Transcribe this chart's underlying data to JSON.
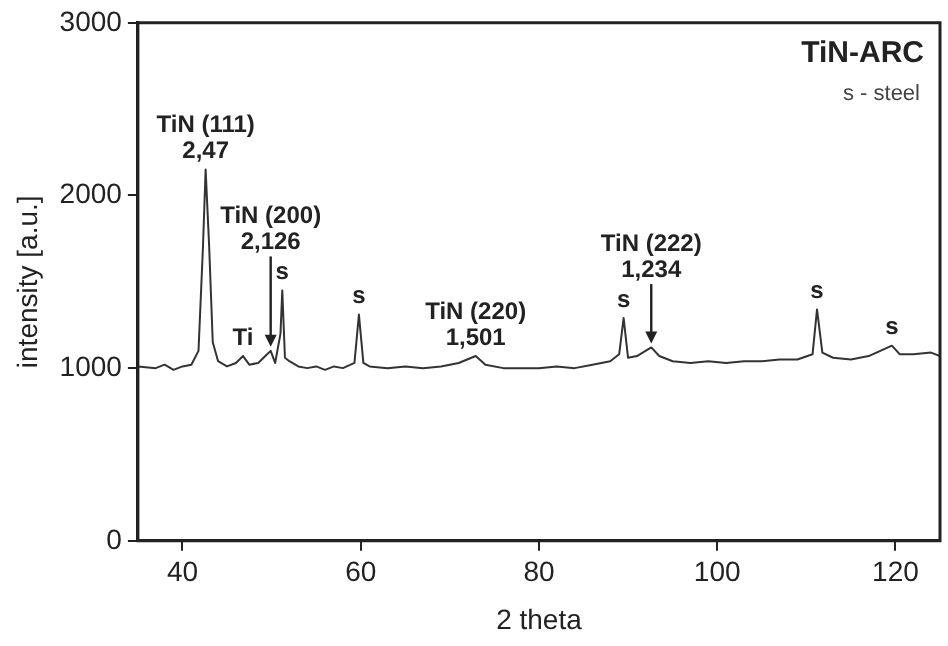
{
  "chart_data": {
    "type": "line",
    "title": "TiN-ARC",
    "xlabel": "2 theta",
    "ylabel": "intensity [a.u.]",
    "xlim": [
      35,
      125
    ],
    "xticks": [
      40,
      60,
      80,
      100,
      120
    ],
    "ylim": [
      0,
      3000
    ],
    "yticks": [
      0,
      1000,
      2000,
      3000
    ],
    "grid": false,
    "legend": false,
    "marker": "none",
    "line_style": "solid",
    "series": [
      {
        "color": "#333333",
        "x": [
          35,
          37,
          38,
          39,
          40,
          41,
          41.8,
          42.3,
          42.6,
          43,
          43.4,
          44,
          45,
          46,
          46.8,
          47.5,
          48.5,
          49.5,
          49.9,
          50.4,
          51,
          51.2,
          51.5,
          52,
          53,
          54,
          55,
          56,
          57,
          58,
          59.3,
          59.8,
          60.3,
          61,
          63,
          65,
          67,
          69,
          71,
          72.9,
          74,
          76,
          78,
          80,
          82,
          84,
          86,
          88,
          89,
          89.5,
          90,
          91,
          92.6,
          93.5,
          95,
          97,
          99,
          101,
          103,
          105,
          107,
          109,
          110.7,
          111.2,
          111.8,
          113,
          115,
          117,
          119.6,
          120.5,
          122,
          124,
          125
        ],
        "values": [
          1010,
          1000,
          1020,
          990,
          1010,
          1020,
          1100,
          1700,
          2150,
          1700,
          1150,
          1040,
          1010,
          1030,
          1070,
          1020,
          1030,
          1080,
          1100,
          1030,
          1200,
          1450,
          1060,
          1040,
          1010,
          1000,
          1010,
          990,
          1010,
          1000,
          1030,
          1310,
          1030,
          1010,
          1000,
          1010,
          1000,
          1010,
          1030,
          1070,
          1020,
          1000,
          1000,
          1000,
          1010,
          1000,
          1020,
          1040,
          1080,
          1290,
          1060,
          1070,
          1120,
          1070,
          1040,
          1030,
          1040,
          1030,
          1040,
          1040,
          1050,
          1050,
          1080,
          1340,
          1090,
          1060,
          1050,
          1070,
          1130,
          1080,
          1080,
          1090,
          1070
        ]
      }
    ],
    "annotations": [
      {
        "text": "TiN (111)\n2,47",
        "x": 42.6,
        "y": 2150
      },
      {
        "text": "s",
        "x": 51.2,
        "y": 1450
      },
      {
        "text": "s",
        "x": 59.8,
        "y": 1310
      },
      {
        "text": "Ti",
        "x": 46.8,
        "y": 1070
      },
      {
        "text": "TiN (200)\n2,126",
        "x": 49.9,
        "y": 1100
      },
      {
        "text": "TiN (220)\n1,501",
        "x": 72.9,
        "y": 1070
      },
      {
        "text": "s",
        "x": 89.5,
        "y": 1290
      },
      {
        "text": "TiN (222)\n1,234",
        "x": 92.6,
        "y": 1120
      },
      {
        "text": "s",
        "x": 111.2,
        "y": 1340
      },
      {
        "text": "s",
        "x": 119.6,
        "y": 1130
      },
      "s - steel"
    ]
  }
}
